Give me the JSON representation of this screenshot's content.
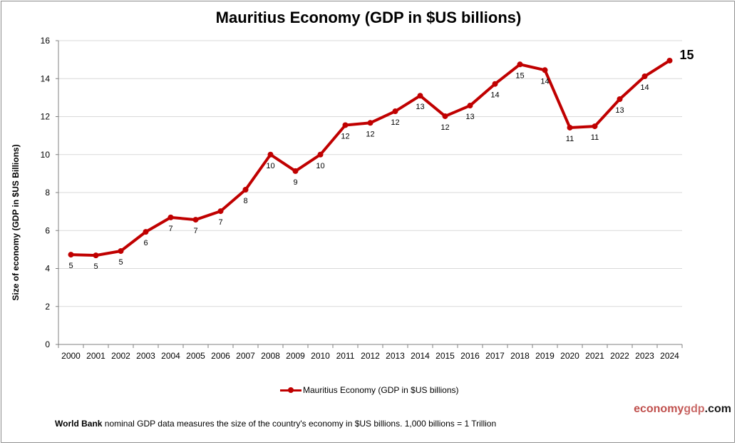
{
  "chart_data": {
    "type": "line",
    "title": "Mauritius Economy (GDP in $US billions)",
    "xlabel": "",
    "ylabel": "Size of economy (GDP in $US Billions)",
    "ylim": [
      0,
      16
    ],
    "yticks": [
      0,
      2,
      4,
      6,
      8,
      10,
      12,
      14,
      16
    ],
    "grid": true,
    "legend_position": "bottom",
    "categories": [
      "2000",
      "2001",
      "2002",
      "2003",
      "2004",
      "2005",
      "2006",
      "2007",
      "2008",
      "2009",
      "2010",
      "2011",
      "2012",
      "2013",
      "2014",
      "2015",
      "2016",
      "2017",
      "2018",
      "2019",
      "2020",
      "2021",
      "2022",
      "2023",
      "2024"
    ],
    "series": [
      {
        "name": "Mauritius Economy (GDP in $US billions)",
        "color": "#c00000",
        "values": [
          4.73,
          4.69,
          4.92,
          5.93,
          6.69,
          6.57,
          7.02,
          8.15,
          10.0,
          9.13,
          10.0,
          11.55,
          11.67,
          12.28,
          13.1,
          12.02,
          12.58,
          13.72,
          14.75,
          14.45,
          11.42,
          11.49,
          12.92,
          14.12,
          14.95
        ],
        "data_labels": [
          "5",
          "5",
          "5",
          "6",
          "7",
          "7",
          "7",
          "8",
          "10",
          "9",
          "10",
          "12",
          "12",
          "12",
          "13",
          "12",
          "13",
          "14",
          "15",
          "14",
          "11",
          "11",
          "13",
          "14",
          "15"
        ]
      }
    ]
  },
  "brand": {
    "part1": "economy",
    "part2": "gdp",
    "part3": ".com"
  },
  "note": {
    "bold": "World Bank",
    "text": " nominal GDP data  measures the size of the country's economy in $US billions. 1,000 billions = 1 Trillion"
  }
}
